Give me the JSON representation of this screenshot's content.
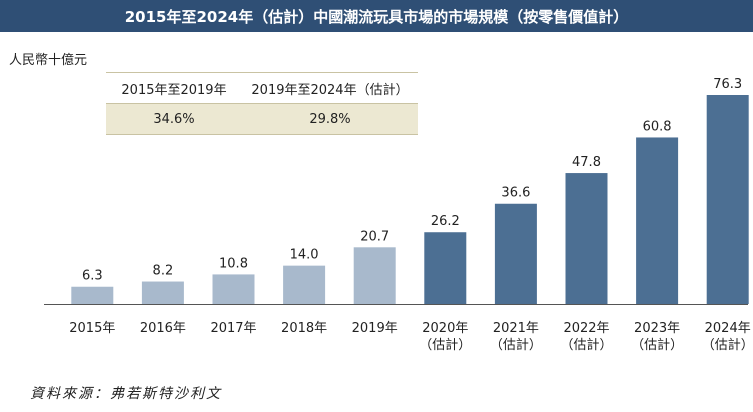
{
  "title": "2015年至2024年（估計）中國潮流玩具市場的市場規模（按零售價值計）",
  "unit_label": "人民幣十億元",
  "cagr_table": {
    "headers": [
      "2015年至2019年",
      "2019年至2024年（估計）"
    ],
    "values": [
      "34.6%",
      "29.8%"
    ]
  },
  "source": "資料來源：弗若斯特沙利文",
  "colors": {
    "title_bg": "#2f4f75",
    "historical_bar": "#a8b9cc",
    "forecast_bar": "#4c6f93",
    "table_fill": "#ece8d2"
  },
  "chart_data": {
    "type": "bar",
    "categories": [
      "2015年",
      "2016年",
      "2017年",
      "2018年",
      "2019年",
      "2020年",
      "2021年",
      "2022年",
      "2023年",
      "2024年"
    ],
    "category_notes": [
      "",
      "",
      "",
      "",
      "",
      "（估計）",
      "（估計）",
      "（估計）",
      "（估計）",
      "（估計）"
    ],
    "values": [
      6.3,
      8.2,
      10.8,
      14.0,
      20.7,
      26.2,
      36.6,
      47.8,
      60.8,
      76.3
    ],
    "value_labels": [
      "6.3",
      "8.2",
      "10.8",
      "14.0",
      "20.7",
      "26.2",
      "36.6",
      "47.8",
      "60.8",
      "76.3"
    ],
    "estimated": [
      false,
      false,
      false,
      false,
      false,
      true,
      true,
      true,
      true,
      true
    ],
    "title": "2015年至2024年（估計）中國潮流玩具市場的市場規模（按零售價值計）",
    "ylabel": "人民幣十億元",
    "grid": false
  }
}
